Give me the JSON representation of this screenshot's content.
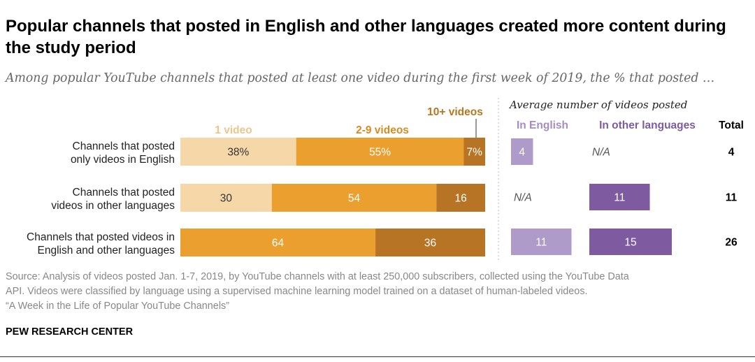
{
  "chart_data": {
    "type": "bar",
    "orientation": "horizontal",
    "stacked": true,
    "title": "Popular channels that posted in English and other languages created more content during the study period",
    "subtitle": "Among popular YouTube channels that posted at least one video during the first week of 2019, the % that posted …",
    "categories": [
      [
        "Channels that posted",
        "only videos in English"
      ],
      [
        "Channels that posted",
        "videos in other languages"
      ],
      [
        "Channels that posted videos in",
        "English and other languages"
      ]
    ],
    "series": [
      {
        "name": "1 video",
        "values": [
          38,
          30,
          0
        ],
        "labels": [
          "38%",
          "30",
          ""
        ],
        "color": "#F6D7A8",
        "label_color": "#333333"
      },
      {
        "name": "2-9 videos",
        "values": [
          55,
          54,
          64
        ],
        "labels": [
          "55%",
          "54",
          "64"
        ],
        "color": "#EA9F2E",
        "label_color": "#ffffff",
        "legend_color": "#DC8A1E"
      },
      {
        "name": "10+ videos",
        "values": [
          7,
          16,
          36
        ],
        "labels": [
          "7%",
          "16",
          "36"
        ],
        "color": "#B77425",
        "label_color": "#ffffff",
        "legend_color": "#B9761F"
      }
    ],
    "xlim": [
      0,
      100
    ],
    "legend_position": "top",
    "grid": false,
    "average_panel": {
      "header": "Average number of videos posted",
      "columns": [
        {
          "name": "In English",
          "values": [
            4,
            null,
            11
          ],
          "labels": [
            "4",
            "N/A",
            "11"
          ],
          "color": "#AE9BC9",
          "label_color": "#ffffff",
          "header_color": "#A58CC4"
        },
        {
          "name": "In other languages",
          "values": [
            null,
            11,
            15
          ],
          "labels": [
            "N/A",
            "11",
            "15"
          ],
          "color": "#7E5BA0",
          "label_color": "#ffffff",
          "header_color": "#7E5BA0"
        }
      ],
      "total_header": "Total",
      "totals": [
        "4",
        "11",
        "26"
      ],
      "xlim": [
        0,
        15
      ],
      "na_label_color": "#555555"
    }
  },
  "footnote": {
    "lines": [
      "Source: Analysis of videos posted Jan. 1-7, 2019, by YouTube channels with at least 250,000 subscribers, collected using the YouTube Data",
      "API. Videos were classified by language using a supervised machine learning model trained on a dataset of human-labeled videos.",
      "“A Week in the Life of Popular YouTube Channels”"
    ]
  },
  "source_org": "PEW RESEARCH CENTER"
}
